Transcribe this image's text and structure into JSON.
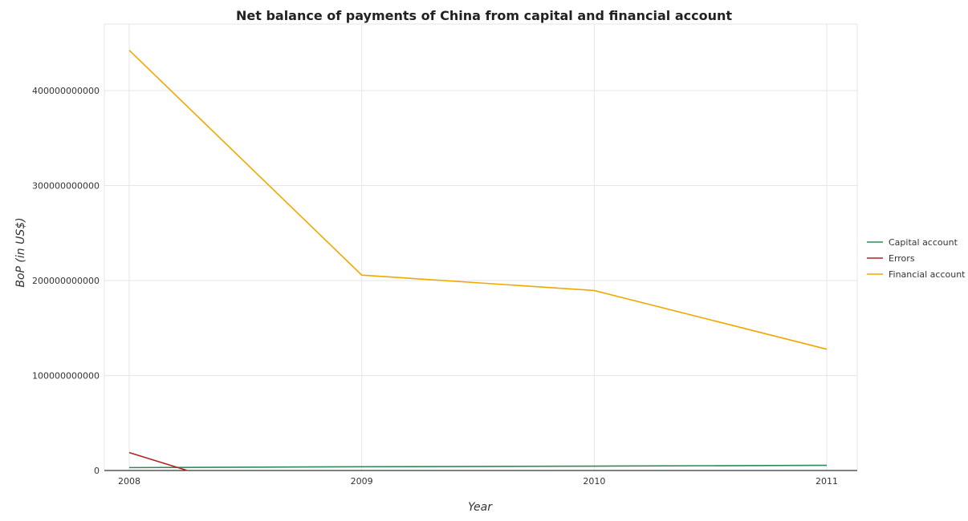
{
  "chart_data": {
    "type": "line",
    "title": "Net balance of payments of China from capital and financial account",
    "xlabel": "Year",
    "ylabel": "BoP (in US$)",
    "categories": [
      "2008",
      "2009",
      "2010",
      "2011"
    ],
    "ylim": [
      0,
      470000000000
    ],
    "yticks": [
      0,
      100000000000,
      200000000000,
      300000000000,
      400000000000
    ],
    "ytick_labels": [
      "0",
      "100000000000",
      "200000000000",
      "300000000000",
      "400000000000"
    ],
    "grid": true,
    "legend_position": "right",
    "series": [
      {
        "name": "Capital account",
        "color": "#2e8b57",
        "values": [
          3050000000,
          3940000000,
          4630000000,
          5450000000
        ]
      },
      {
        "name": "Errors",
        "color": "#b22222",
        "values": [
          18900000000,
          0,
          0,
          0
        ]
      },
      {
        "name": "Financial account",
        "color": "#f0a800",
        "values": [
          442400000000,
          205700000000,
          189500000000,
          127700000000
        ]
      }
    ]
  }
}
